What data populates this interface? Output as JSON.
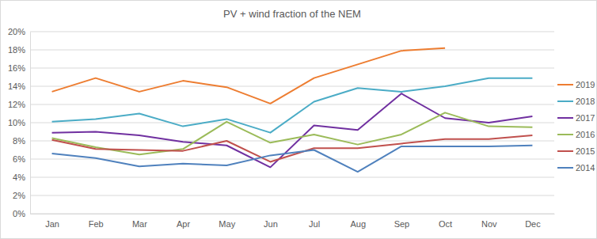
{
  "chart_data": {
    "type": "line",
    "title": "PV + wind fraction of the NEM",
    "categories": [
      "Jan",
      "Feb",
      "Mar",
      "Apr",
      "May",
      "Jun",
      "Jul",
      "Aug",
      "Sep",
      "Oct",
      "Nov",
      "Dec"
    ],
    "series": [
      {
        "name": "2019",
        "color": "#ed7d31",
        "values": [
          13.4,
          14.9,
          13.4,
          14.6,
          13.9,
          12.1,
          14.9,
          16.4,
          17.9,
          18.2,
          null,
          null
        ]
      },
      {
        "name": "2018",
        "color": "#4bacc6",
        "values": [
          10.1,
          10.4,
          11.0,
          9.6,
          10.4,
          8.9,
          12.3,
          13.8,
          13.4,
          14.0,
          14.9,
          14.9
        ]
      },
      {
        "name": "2017",
        "color": "#7030a0",
        "values": [
          8.9,
          9.0,
          8.6,
          7.9,
          7.5,
          5.1,
          9.7,
          9.2,
          13.2,
          10.5,
          10.0,
          10.7
        ]
      },
      {
        "name": "2016",
        "color": "#9bbb59",
        "values": [
          8.3,
          7.3,
          6.5,
          7.1,
          10.1,
          7.8,
          8.7,
          7.6,
          8.7,
          11.1,
          9.6,
          9.5
        ]
      },
      {
        "name": "2015",
        "color": "#c0504d",
        "values": [
          8.1,
          7.1,
          7.0,
          6.9,
          8.0,
          5.7,
          7.2,
          7.2,
          7.7,
          8.2,
          8.2,
          8.6
        ]
      },
      {
        "name": "2014",
        "color": "#4f81bd",
        "values": [
          6.6,
          6.1,
          5.2,
          5.5,
          5.3,
          6.4,
          7.0,
          4.6,
          7.4,
          7.4,
          7.4,
          7.5
        ]
      }
    ],
    "ylim": [
      0,
      20
    ],
    "yticks": [
      {
        "value": 0,
        "label": "0%"
      },
      {
        "value": 2,
        "label": "2%"
      },
      {
        "value": 4,
        "label": "4%"
      },
      {
        "value": 6,
        "label": "6%"
      },
      {
        "value": 8,
        "label": "8%"
      },
      {
        "value": 10,
        "label": "10%"
      },
      {
        "value": 12,
        "label": "12%"
      },
      {
        "value": 14,
        "label": "14%"
      },
      {
        "value": 16,
        "label": "16%"
      },
      {
        "value": 18,
        "label": "18%"
      },
      {
        "value": 20,
        "label": "20%"
      }
    ],
    "grid": true,
    "legend": "right"
  }
}
